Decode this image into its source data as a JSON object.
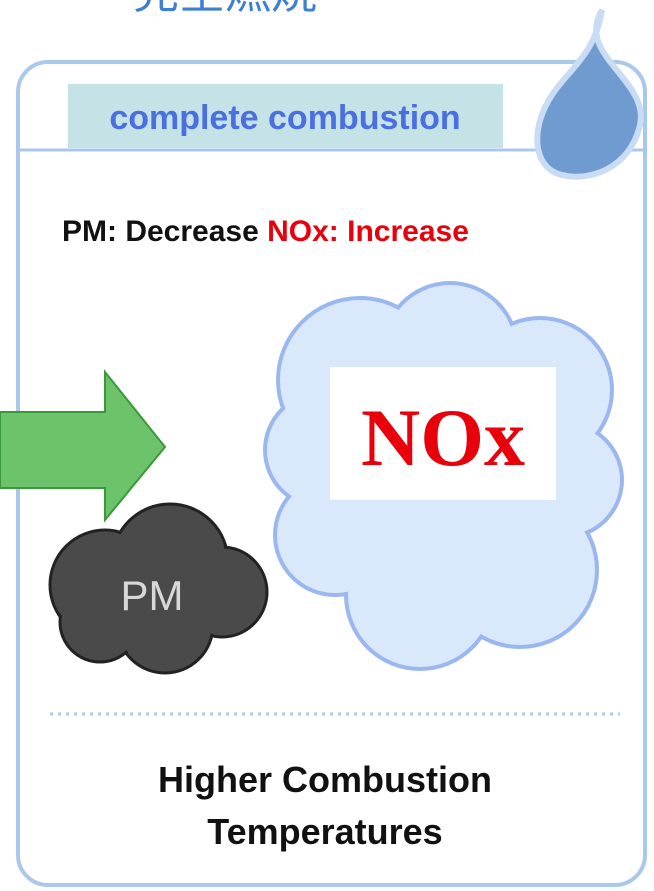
{
  "title": "完全燃焼",
  "header": "complete combustion",
  "effects": {
    "pm": "PM: Decrease",
    "nox": "NOx: Increase"
  },
  "labels": {
    "nox": "NOx",
    "pm": "PM"
  },
  "footer": [
    "Higher Combustion",
    "Temperatures"
  ]
}
